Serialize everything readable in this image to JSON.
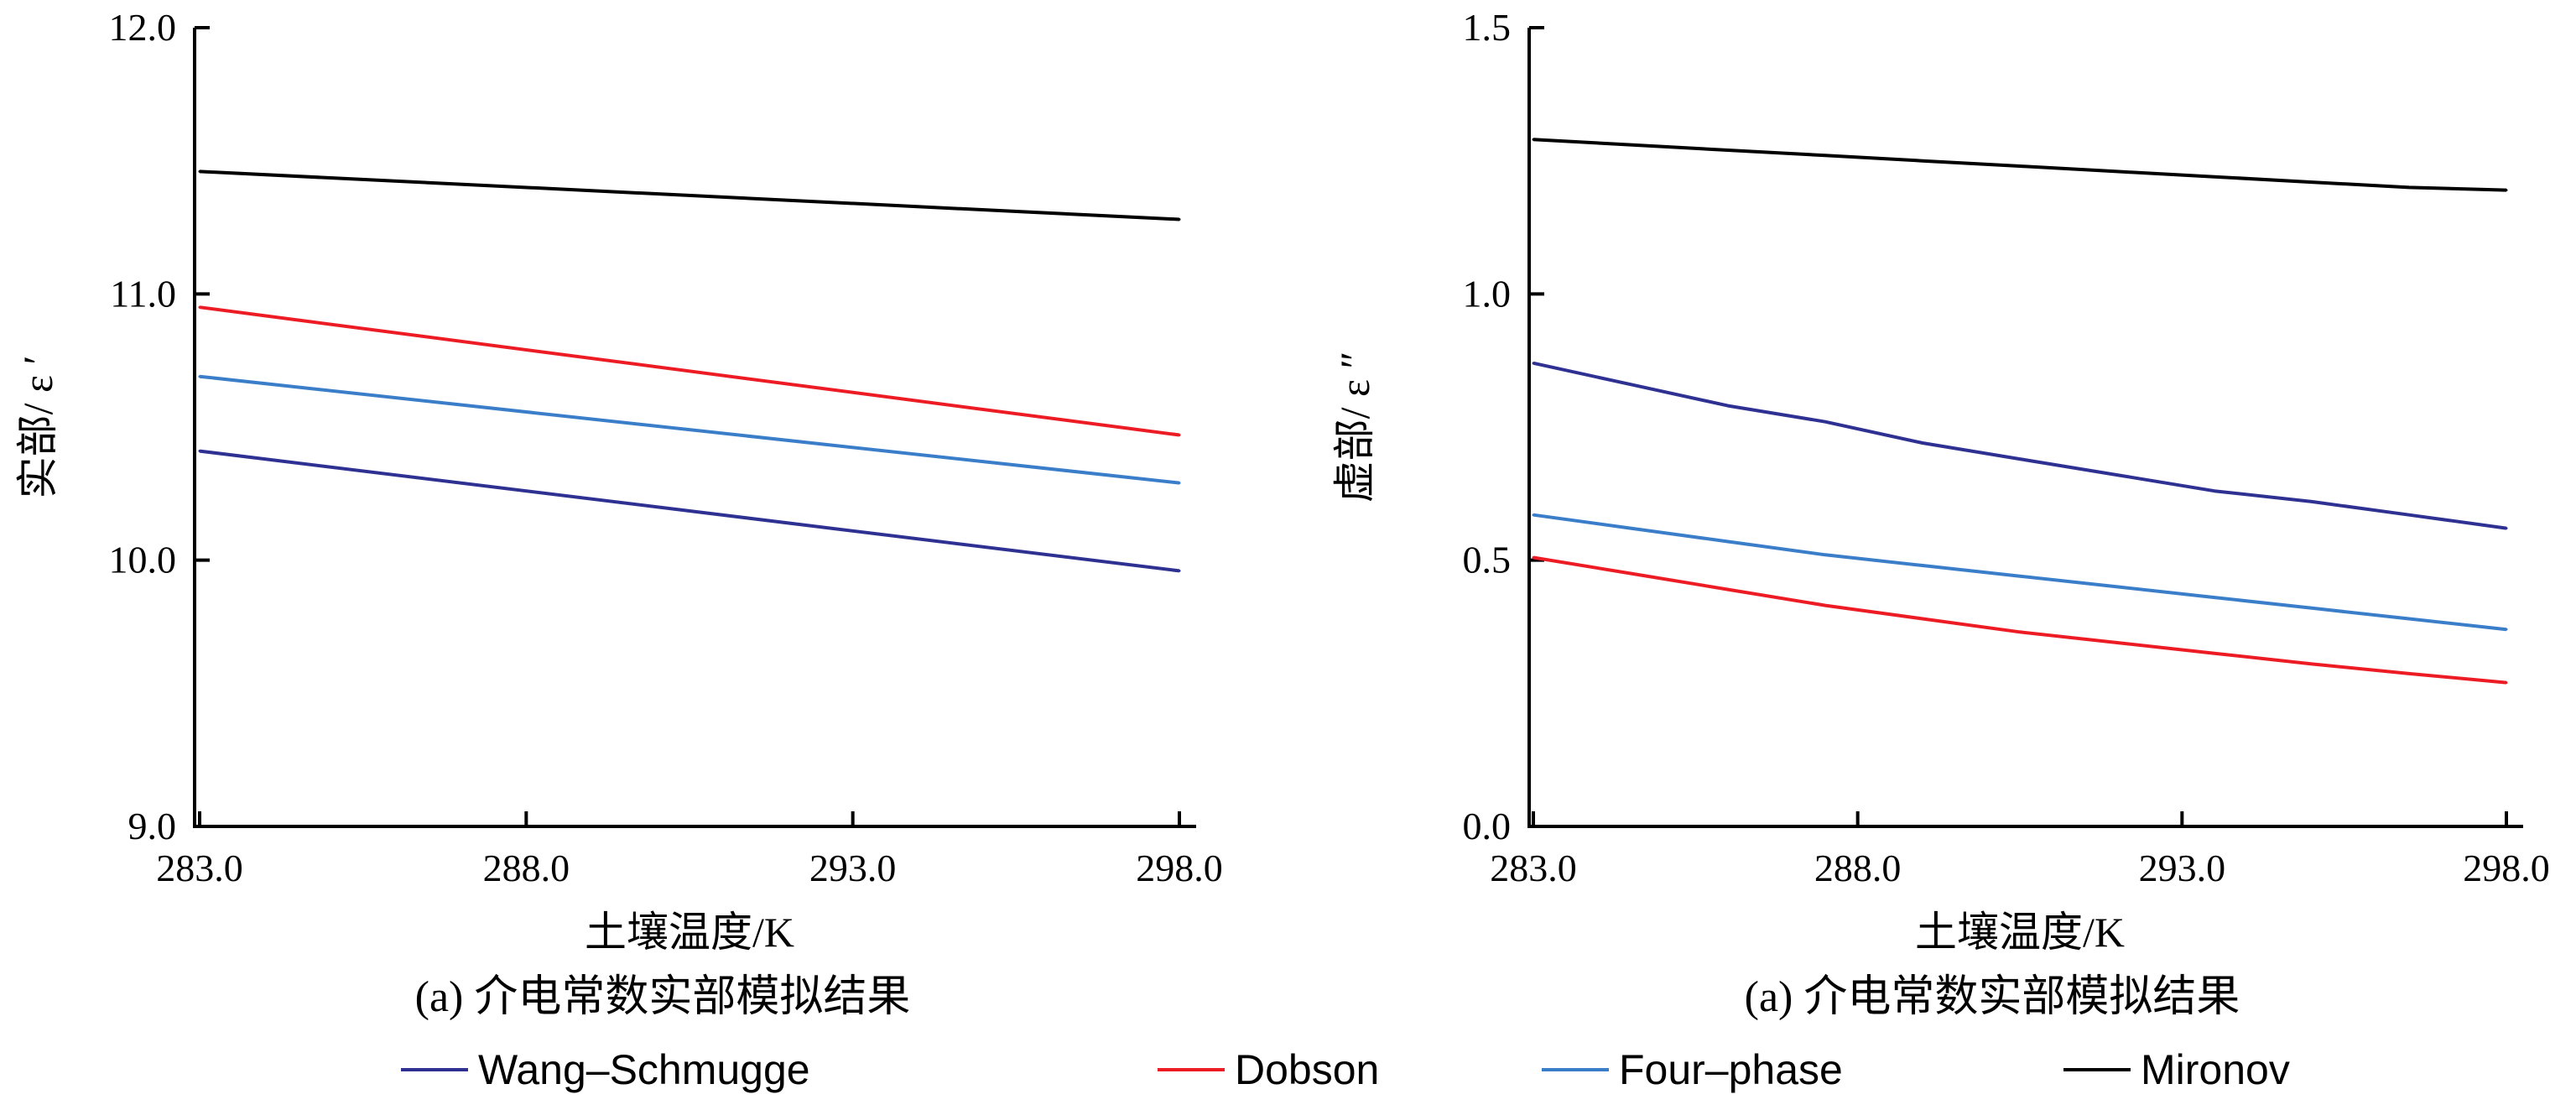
{
  "legend": [
    {
      "label": "Wang–Schmugge",
      "color": "#2e3192"
    },
    {
      "label": "Dobson",
      "color": "#ed1c24"
    },
    {
      "label": "Four–phase",
      "color": "#3a7dc9"
    },
    {
      "label": "Mironov",
      "color": "#000000"
    }
  ],
  "chart_data": [
    {
      "type": "line",
      "caption": "(a) 介电常数实部模拟结果",
      "xlabel": "土壤温度/K",
      "ylabel": "实部/ ε ′",
      "xlim": [
        283.0,
        298.0
      ],
      "ylim": [
        9.0,
        12.0
      ],
      "xticks": [
        "283.0",
        "288.0",
        "293.0",
        "298.0"
      ],
      "yticks": [
        "9.0",
        "10.0",
        "11.0",
        "12.0"
      ],
      "x": [
        283.0,
        298.0
      ],
      "series": [
        {
          "name": "Wang–Schmugge",
          "color": "#2e3192",
          "values": [
            10.41,
            9.96
          ]
        },
        {
          "name": "Dobson",
          "color": "#ed1c24",
          "values": [
            10.95,
            10.47
          ]
        },
        {
          "name": "Four–phase",
          "color": "#3a7dc9",
          "values": [
            10.69,
            10.29
          ]
        },
        {
          "name": "Mironov",
          "color": "#000000",
          "values": [
            11.46,
            11.28
          ]
        }
      ]
    },
    {
      "type": "line",
      "caption": "(a) 介电常数实部模拟结果",
      "xlabel": "土壤温度/K",
      "ylabel": "虚部/ ε ″",
      "xlim": [
        283.0,
        298.0
      ],
      "ylim": [
        0.0,
        1.5
      ],
      "xticks": [
        "283.0",
        "288.0",
        "293.0",
        "298.0"
      ],
      "yticks": [
        "0.0",
        "0.5",
        "1.0",
        "1.5"
      ],
      "x": [
        283.0,
        284.5,
        286.0,
        287.5,
        289.0,
        290.5,
        292.0,
        293.5,
        295.0,
        296.5,
        298.0
      ],
      "series": [
        {
          "name": "Wang–Schmugge",
          "color": "#2e3192",
          "values": [
            0.87,
            0.83,
            0.79,
            0.76,
            0.72,
            0.69,
            0.66,
            0.63,
            0.61,
            0.585,
            0.56
          ]
        },
        {
          "name": "Dobson",
          "color": "#ed1c24",
          "values": [
            0.505,
            0.475,
            0.445,
            0.415,
            0.39,
            0.365,
            0.345,
            0.325,
            0.305,
            0.287,
            0.27
          ]
        },
        {
          "name": "Four–phase",
          "color": "#3a7dc9",
          "values": [
            0.585,
            0.56,
            0.535,
            0.51,
            0.49,
            0.47,
            0.45,
            0.43,
            0.41,
            0.39,
            0.37
          ]
        },
        {
          "name": "Mironov",
          "color": "#000000",
          "values": [
            1.29,
            1.28,
            1.27,
            1.26,
            1.25,
            1.24,
            1.23,
            1.22,
            1.21,
            1.2,
            1.195
          ]
        }
      ]
    }
  ]
}
